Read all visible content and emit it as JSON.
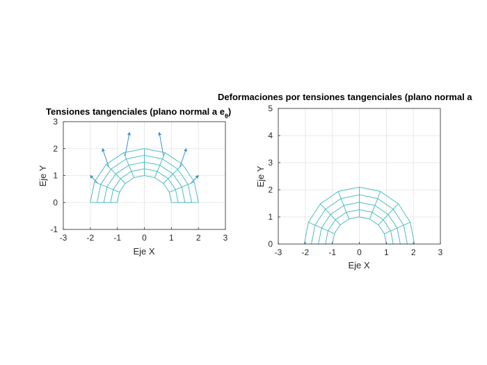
{
  "chart_data": [
    {
      "type": "line",
      "title": "Tensiones tangenciales (plano normal a e",
      "title_subscript": "θ",
      "title_suffix": ")",
      "xlabel": "Eje X",
      "ylabel": "Eje Y",
      "xlim": [
        -3,
        3
      ],
      "ylim": [
        -1,
        3
      ],
      "xticks": [
        "-3",
        "-2",
        "-1",
        "0",
        "1",
        "2",
        "3"
      ],
      "yticks": [
        "-1",
        "0",
        "1",
        "2",
        "3"
      ],
      "grid": true,
      "mesh_color": "#4fbcc4",
      "arrow_color": "#3d8fcf",
      "mesh": {
        "description": "half-annulus polar grid",
        "r_inner": 1.0,
        "r_outer": 2.0,
        "radial_divisions": 4,
        "angles_deg": [
          0,
          22.5,
          45,
          67.5,
          90,
          112.5,
          135,
          157.5,
          180
        ],
        "outer_arrow_tips": [
          [
            -2.0,
            1.0
          ],
          [
            -1.55,
            2.0
          ],
          [
            -0.55,
            2.6
          ],
          [
            0.55,
            2.6
          ],
          [
            1.55,
            2.0
          ],
          [
            2.0,
            1.0
          ]
        ]
      }
    },
    {
      "type": "line",
      "title": "Deformaciones por tensiones tangenciales (plano normal a",
      "xlabel": "Eje X",
      "ylabel": "Eje Y",
      "xlim": [
        -3,
        3
      ],
      "ylim": [
        0,
        5
      ],
      "xticks": [
        "-3",
        "-2",
        "-1",
        "0",
        "1",
        "2",
        "3"
      ],
      "yticks": [
        "0",
        "1",
        "2",
        "3",
        "4",
        "5"
      ],
      "grid": true,
      "mesh_color": "#4fbcc4",
      "mesh": {
        "description": "deformed half-annulus polar grid",
        "r_inner": 1.0,
        "r_outer": 2.0,
        "radial_divisions": 4,
        "angles_deg": [
          0,
          22.5,
          45,
          67.5,
          90,
          112.5,
          135,
          157.5,
          180
        ]
      }
    }
  ]
}
